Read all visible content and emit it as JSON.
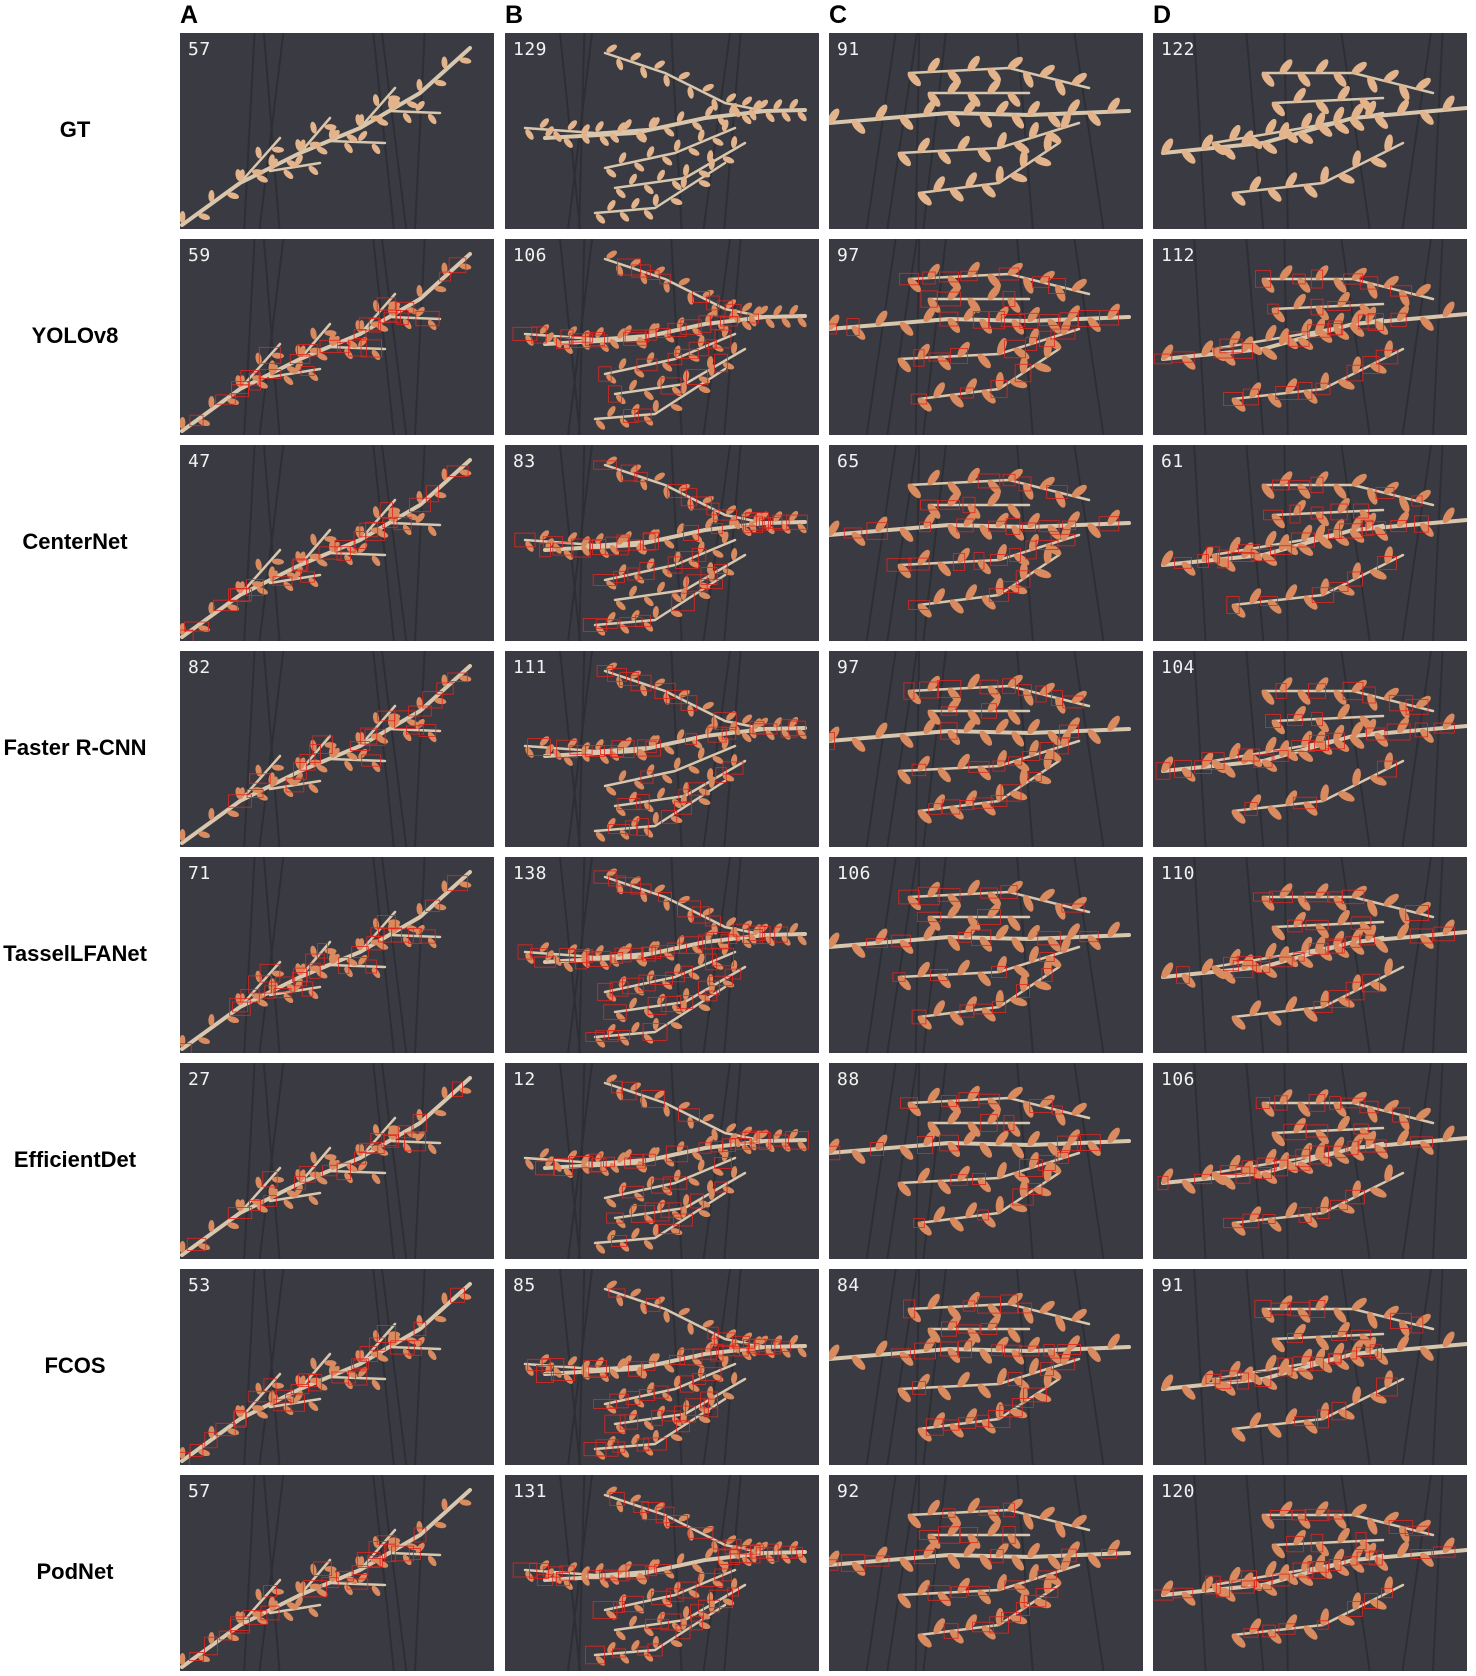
{
  "columns": [
    "A",
    "B",
    "C",
    "D"
  ],
  "rows": [
    {
      "label": "GT",
      "counts": [
        "57",
        "129",
        "91",
        "122"
      ]
    },
    {
      "label": "YOLOv8",
      "counts": [
        "59",
        "106",
        "97",
        "112"
      ]
    },
    {
      "label": "CenterNet",
      "counts": [
        "47",
        "83",
        "65",
        "61"
      ]
    },
    {
      "label": "Faster R-CNN",
      "counts": [
        "82",
        "111",
        "97",
        "104"
      ]
    },
    {
      "label": "TasselLFANet",
      "counts": [
        "71",
        "138",
        "106",
        "110"
      ]
    },
    {
      "label": "EfficientDet",
      "counts": [
        "27",
        "12",
        "88",
        "106"
      ]
    },
    {
      "label": "FCOS",
      "counts": [
        "53",
        "85",
        "84",
        "91"
      ]
    },
    {
      "label": "PodNet",
      "counts": [
        "57",
        "131",
        "92",
        "120"
      ]
    }
  ],
  "colors": {
    "background": "#3a3a42",
    "stem": "#d9c7ad",
    "pod": "#d98a5e",
    "box": "#e0261f",
    "count_text": "#f2f2f2"
  }
}
